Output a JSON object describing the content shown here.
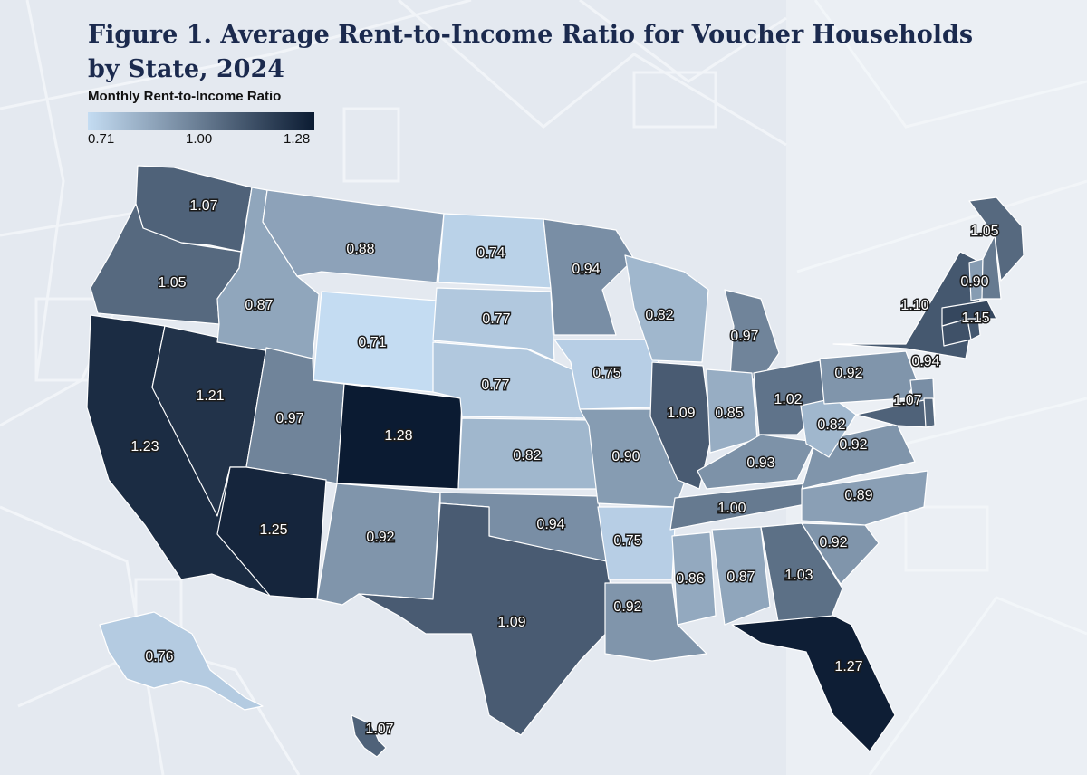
{
  "title": "Figure 1. Average Rent-to-Income Ratio for Voucher Households by State, 2024",
  "legend": {
    "title": "Monthly Rent-to-Income Ratio",
    "ticks": [
      "0.71",
      "1.00",
      "1.28"
    ],
    "color_low": "#c4dcf2",
    "color_high": "#0b1b32"
  },
  "chart_data": {
    "type": "choropleth",
    "range": [
      0.71,
      1.28
    ],
    "values": [
      {
        "state": "WA",
        "value": 1.07,
        "label": "1.07"
      },
      {
        "state": "OR",
        "value": 1.05,
        "label": "1.05"
      },
      {
        "state": "CA",
        "value": 1.23,
        "label": "1.23"
      },
      {
        "state": "NV",
        "value": 1.21,
        "label": "1.21"
      },
      {
        "state": "ID",
        "value": 0.87,
        "label": "0.87"
      },
      {
        "state": "MT",
        "value": 0.88,
        "label": "0.88"
      },
      {
        "state": "WY",
        "value": 0.71,
        "label": "0.71"
      },
      {
        "state": "UT",
        "value": 0.97,
        "label": "0.97"
      },
      {
        "state": "AZ",
        "value": 1.25,
        "label": "1.25"
      },
      {
        "state": "CO",
        "value": 1.28,
        "label": "1.28"
      },
      {
        "state": "NM",
        "value": 0.92,
        "label": "0.92"
      },
      {
        "state": "ND",
        "value": 0.74,
        "label": "0.74"
      },
      {
        "state": "SD",
        "value": 0.77,
        "label": "0.77"
      },
      {
        "state": "NE",
        "value": 0.77,
        "label": "0.77"
      },
      {
        "state": "KS",
        "value": 0.82,
        "label": "0.82"
      },
      {
        "state": "OK",
        "value": 0.94,
        "label": "0.94"
      },
      {
        "state": "TX",
        "value": 1.09,
        "label": "1.09"
      },
      {
        "state": "MN",
        "value": 0.94,
        "label": "0.94"
      },
      {
        "state": "IA",
        "value": 0.75,
        "label": "0.75"
      },
      {
        "state": "MO",
        "value": 0.9,
        "label": "0.90"
      },
      {
        "state": "AR",
        "value": 0.75,
        "label": "0.75"
      },
      {
        "state": "LA",
        "value": 0.92,
        "label": "0.92"
      },
      {
        "state": "WI",
        "value": 0.82,
        "label": "0.82"
      },
      {
        "state": "IL",
        "value": 1.09,
        "label": "1.09"
      },
      {
        "state": "MI",
        "value": 0.97,
        "label": "0.97"
      },
      {
        "state": "IN",
        "value": 0.85,
        "label": "0.85"
      },
      {
        "state": "OH",
        "value": 1.02,
        "label": "1.02"
      },
      {
        "state": "KY",
        "value": 0.93,
        "label": "0.93"
      },
      {
        "state": "TN",
        "value": 1.0,
        "label": "1.00"
      },
      {
        "state": "MS",
        "value": 0.86,
        "label": "0.86"
      },
      {
        "state": "AL",
        "value": 0.87,
        "label": "0.87"
      },
      {
        "state": "GA",
        "value": 1.03,
        "label": "1.03"
      },
      {
        "state": "FL",
        "value": 1.27,
        "label": "1.27"
      },
      {
        "state": "SC",
        "value": 0.92,
        "label": "0.92"
      },
      {
        "state": "NC",
        "value": 0.89,
        "label": "0.89"
      },
      {
        "state": "VA",
        "value": 0.92,
        "label": "0.92"
      },
      {
        "state": "WV",
        "value": 0.82,
        "label": "0.82"
      },
      {
        "state": "PA",
        "value": 0.92,
        "label": "0.92"
      },
      {
        "state": "NY",
        "value": 1.1,
        "label": "1.10"
      },
      {
        "state": "NJ",
        "value": 0.94,
        "label": "0.94"
      },
      {
        "state": "MD",
        "value": 1.07,
        "label": "1.07"
      },
      {
        "state": "DE",
        "value": 1.05,
        "label": ""
      },
      {
        "state": "CT",
        "value": 1.12,
        "label": ""
      },
      {
        "state": "RI",
        "value": 1.1,
        "label": ""
      },
      {
        "state": "MA",
        "value": 1.15,
        "label": "1.15"
      },
      {
        "state": "VT",
        "value": 0.9,
        "label": "0.90"
      },
      {
        "state": "NH",
        "value": 1.0,
        "label": ""
      },
      {
        "state": "ME",
        "value": 1.05,
        "label": "1.05"
      },
      {
        "state": "AK",
        "value": 0.76,
        "label": "0.76"
      },
      {
        "state": "HI",
        "value": 1.07,
        "label": "1.07"
      }
    ]
  }
}
